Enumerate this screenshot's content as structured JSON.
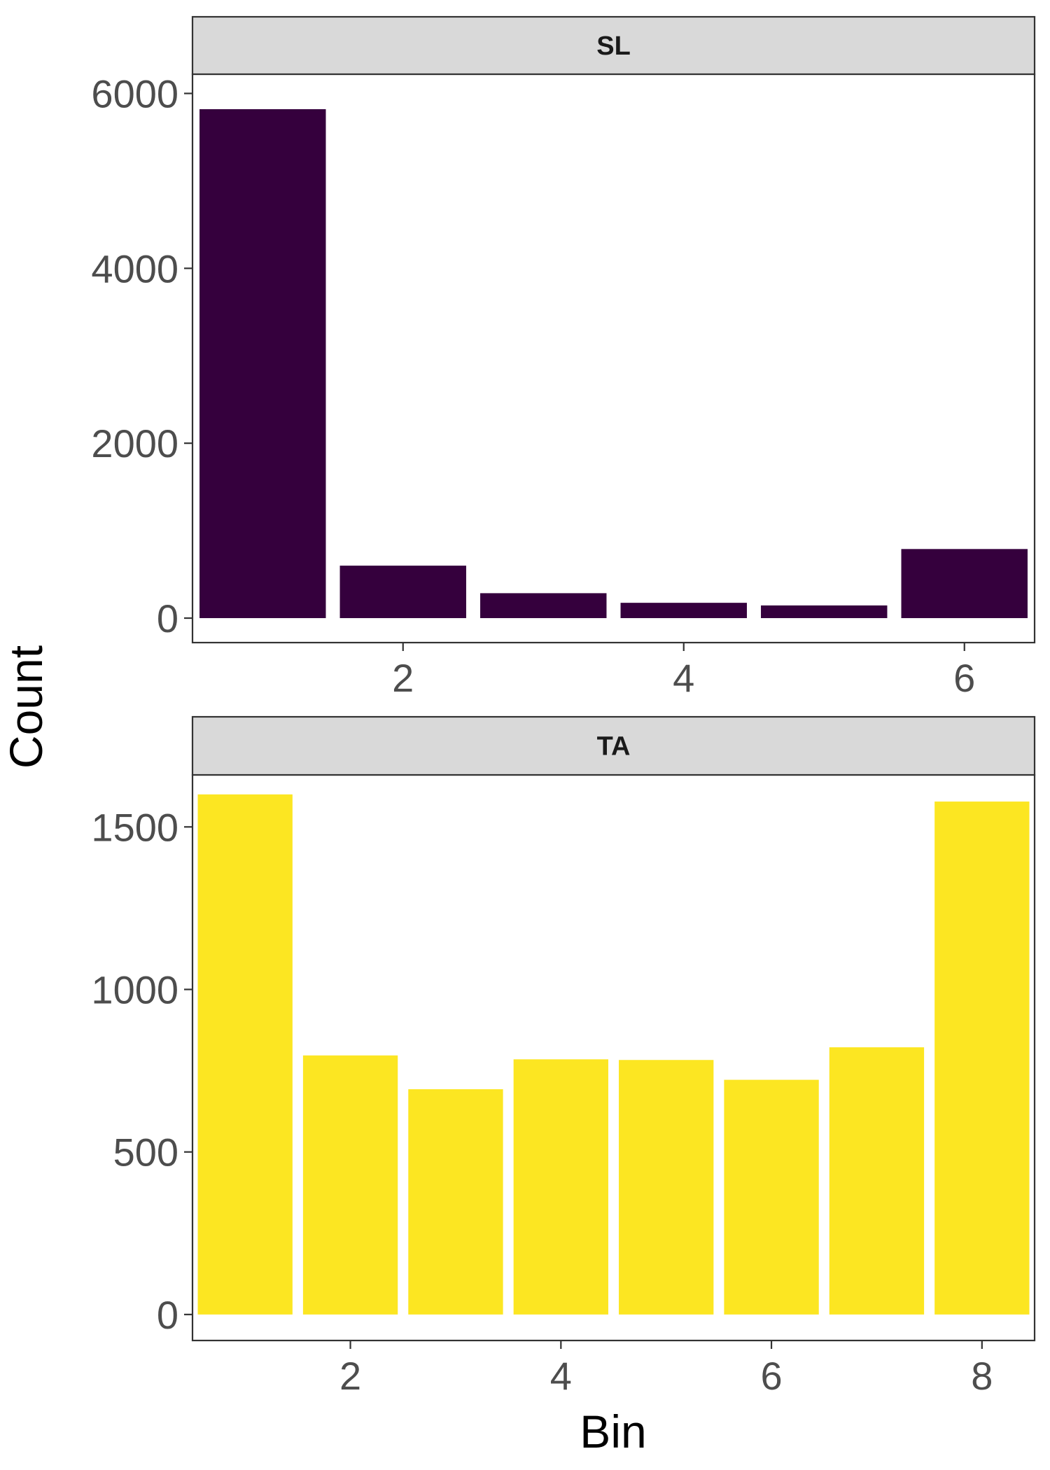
{
  "chart_data": {
    "type": "bar",
    "xlabel": "Bin",
    "ylabel": "Count",
    "grid": false,
    "legend": "none",
    "panels": [
      {
        "strip": "SL",
        "color": "#35003d",
        "x": [
          1,
          2,
          3,
          4,
          5,
          6
        ],
        "values": [
          5820,
          600,
          285,
          175,
          145,
          790
        ],
        "xlim": [
          0.5,
          6.5
        ],
        "ylim": [
          -280,
          6220
        ],
        "xticks": [
          2,
          4,
          6
        ],
        "yticks": [
          0,
          2000,
          4000,
          6000
        ]
      },
      {
        "strip": "TA",
        "color": "#fce622",
        "x": [
          1,
          2,
          3,
          4,
          5,
          6,
          7,
          8
        ],
        "values": [
          1600,
          797,
          693,
          785,
          783,
          722,
          822,
          1578
        ],
        "xlim": [
          0.5,
          8.5
        ],
        "ylim": [
          -80,
          1660
        ],
        "xticks": [
          2,
          4,
          6,
          8
        ],
        "yticks": [
          0,
          500,
          1000,
          1500
        ]
      }
    ]
  }
}
